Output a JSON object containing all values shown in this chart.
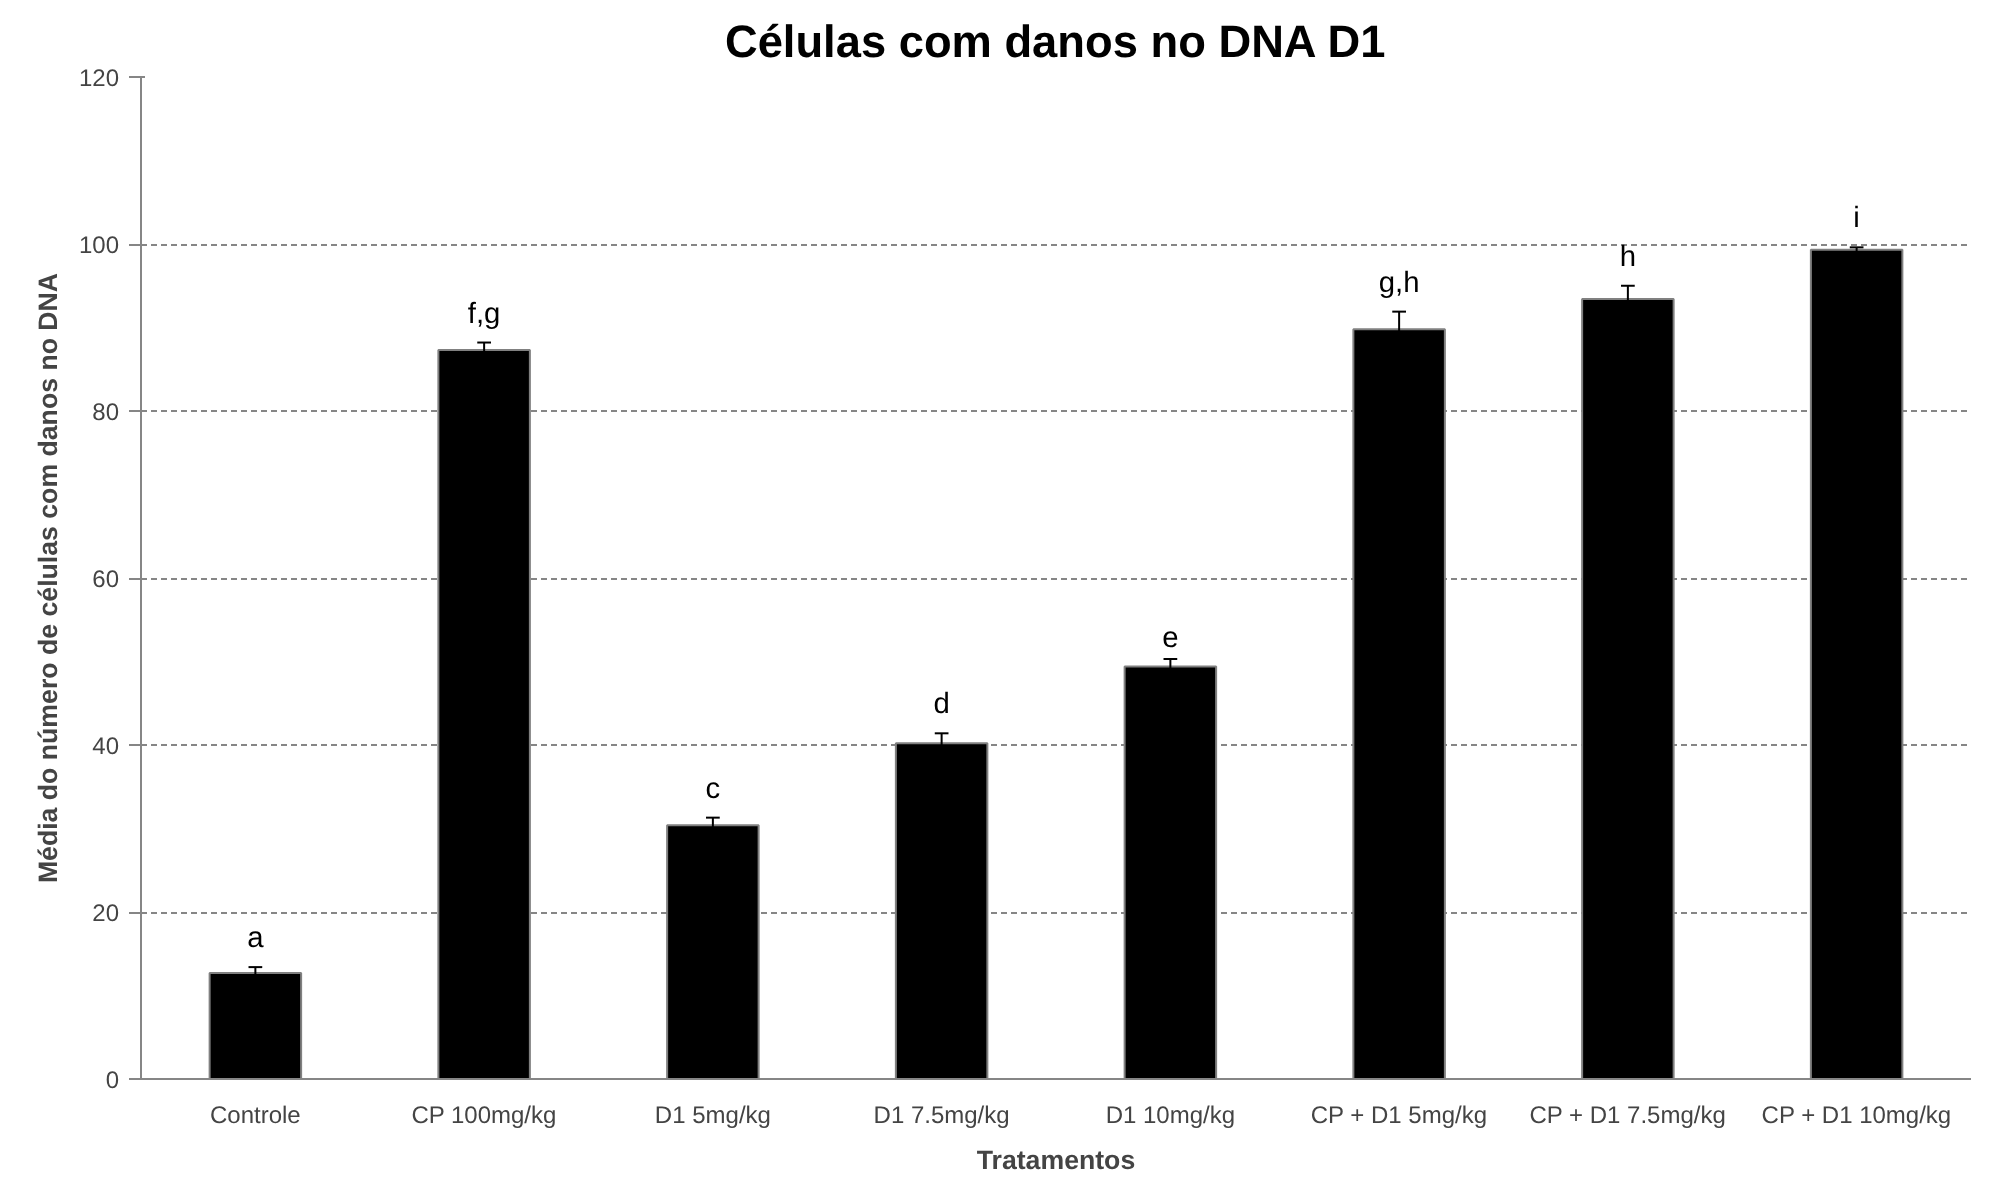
{
  "chart_data": {
    "type": "bar",
    "title": "Células com danos no DNA D1",
    "xlabel": "Tratamentos",
    "ylabel": "Média do número de células com danos no DNA",
    "categories": [
      "Controle",
      "CP 100mg/kg",
      "D1 5mg/kg",
      "D1 7.5mg/kg",
      "D1 10mg/kg",
      "CP + D1 5mg/kg",
      "CP + D1 7.5mg/kg",
      "CP + D1 10mg/kg"
    ],
    "values": [
      12.7,
      87.3,
      30.4,
      40.2,
      49.4,
      89.8,
      93.4,
      99.3
    ],
    "errors": [
      0.7,
      0.9,
      0.9,
      1.2,
      0.9,
      2.1,
      1.6,
      0.3
    ],
    "color": "#000000",
    "ylim": [
      0,
      120
    ],
    "yticks": [
      0,
      20,
      40,
      60,
      80,
      100,
      120
    ],
    "grid": "y",
    "annotations": [
      "a",
      "f,g",
      "c",
      "d",
      "e",
      "g,h",
      "h",
      "i"
    ]
  }
}
